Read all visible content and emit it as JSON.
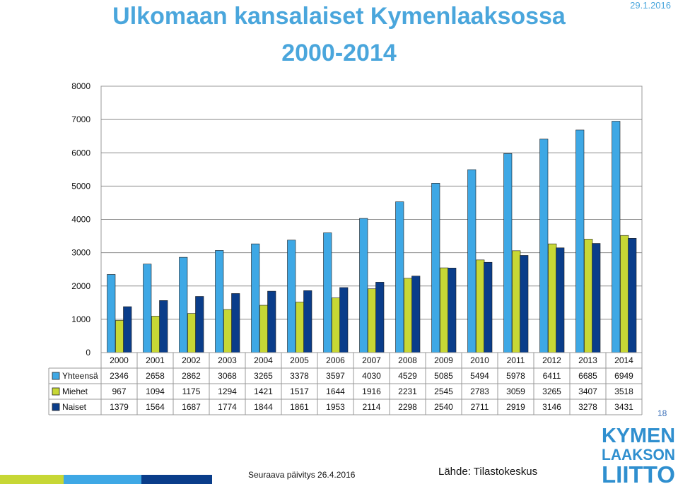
{
  "header": {
    "title_line1": "Ulkomaan kansalaiset Kymenlaaksossa",
    "title_line2": "2000-2014",
    "date": "29.1.2016"
  },
  "page_number": "18",
  "footer": {
    "update_note": "Seuraava päivitys 26.4.2016",
    "source": "Lähde: Tilastokeskus"
  },
  "logo": {
    "line1": "KYMEN",
    "line2": "LAAKSON",
    "line3": "LIITTO"
  },
  "colors": {
    "yhteensa": "#3ea8e5",
    "miehet": "#c7d735",
    "naiset": "#0a3d8a",
    "title": "#4aa6dc"
  },
  "chart_data": {
    "type": "bar",
    "title": "Ulkomaan kansalaiset Kymenlaaksossa 2000-2014",
    "xlabel": "",
    "ylabel": "",
    "ylim": [
      0,
      8000
    ],
    "yticks": [
      "0",
      "1000",
      "2000",
      "3000",
      "4000",
      "5000",
      "6000",
      "7000",
      "8000"
    ],
    "grid": true,
    "legend": "data-table",
    "categories": [
      "2000",
      "2001",
      "2002",
      "2003",
      "2004",
      "2005",
      "2006",
      "2007",
      "2008",
      "2009",
      "2010",
      "2011",
      "2012",
      "2013",
      "2014"
    ],
    "series": [
      {
        "name": "Yhteensä",
        "values": [
          2346,
          2658,
          2862,
          3068,
          3265,
          3378,
          3597,
          4030,
          4529,
          5085,
          5494,
          5978,
          6411,
          6685,
          6949
        ],
        "labels": [
          "2346",
          "2658",
          "2862",
          "3068",
          "3265",
          "3378",
          "3597",
          "4030",
          "4529",
          "5085",
          "5494",
          "5978",
          "6411",
          "6685",
          "6949"
        ]
      },
      {
        "name": "Miehet",
        "values": [
          967,
          1094,
          1175,
          1294,
          1421,
          1517,
          1644,
          1916,
          2231,
          2545,
          2783,
          3059,
          3265,
          3407,
          3518
        ],
        "labels": [
          "967",
          "1094",
          "1175",
          "1294",
          "1421",
          "1517",
          "1644",
          "1916",
          "2231",
          "2545",
          "2783",
          "3059",
          "3265",
          "3407",
          "3518"
        ]
      },
      {
        "name": "Naiset",
        "values": [
          1379,
          1564,
          1687,
          1774,
          1844,
          1861,
          1953,
          2114,
          2298,
          2540,
          2711,
          2919,
          3146,
          3278,
          3431
        ],
        "labels": [
          "1379",
          "1564",
          "1687",
          "1774",
          "1844",
          "1861",
          "1953",
          "2114",
          "2298",
          "2540",
          "2711",
          "2919",
          "3146",
          "3278",
          "3431"
        ]
      }
    ]
  }
}
